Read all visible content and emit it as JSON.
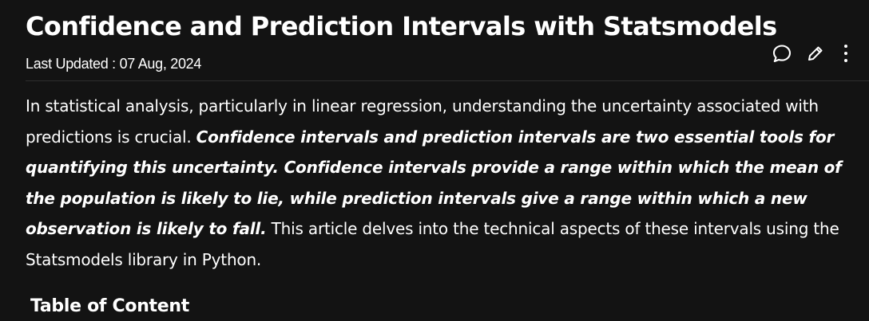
{
  "article": {
    "title": "Confidence and Prediction Intervals with Statsmodels",
    "last_updated_label": "Last Updated : ",
    "last_updated_date": "07 Aug, 2024",
    "actions": [
      {
        "name": "comment",
        "icon": "comment-icon"
      },
      {
        "name": "edit",
        "icon": "pencil-icon"
      },
      {
        "name": "more",
        "icon": "more-vertical-icon"
      }
    ],
    "intro": {
      "lead": "In statistical analysis, particularly in linear regression, understanding the uncertainty associated with predictions is crucial. ",
      "emphasis": "Confidence intervals and prediction intervals are two essential tools for quantifying this uncertainty. Confidence intervals provide a range within which the mean of the population is likely to lie, while prediction intervals give a range within which a new observation is likely to fall.",
      "tail": " This article delves into the technical aspects of these intervals using the Statsmodels library in Python."
    },
    "toc_heading": "Table of Content"
  },
  "colors": {
    "background": "#131313",
    "text": "#ffffff",
    "divider": "#2e2e2e"
  }
}
